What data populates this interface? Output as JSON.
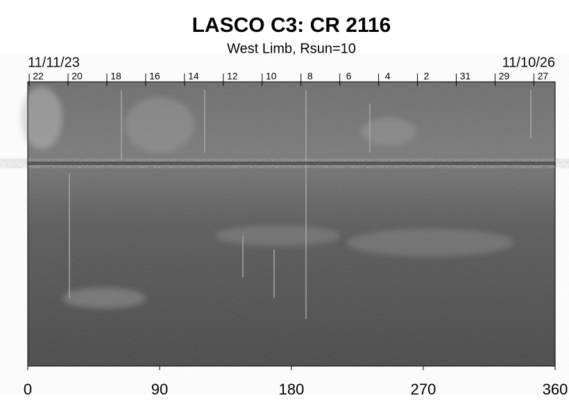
{
  "chart_data": {
    "type": "image",
    "title": "LASCO C3: CR 2116",
    "subtitle": "West Limb, Rsun=10",
    "start_date": "11/11/23",
    "end_date": "11/10/26",
    "xlim": [
      0,
      360
    ],
    "xticks": [
      0,
      90,
      180,
      270,
      360
    ],
    "top_ticks": [
      {
        "value": 1,
        "label": "22"
      },
      {
        "value": 27.5,
        "label": "20"
      },
      {
        "value": 54,
        "label": "18"
      },
      {
        "value": 80.5,
        "label": "16"
      },
      {
        "value": 107,
        "label": "14"
      },
      {
        "value": 133.5,
        "label": "12"
      },
      {
        "value": 160,
        "label": "10"
      },
      {
        "value": 186.5,
        "label": "8"
      },
      {
        "value": 213,
        "label": "6"
      },
      {
        "value": 239.5,
        "label": "4"
      },
      {
        "value": 266,
        "label": "2"
      },
      {
        "value": 292.5,
        "label": "31"
      },
      {
        "value": 319,
        "label": "29"
      },
      {
        "value": 345.5,
        "label": "27"
      }
    ]
  }
}
